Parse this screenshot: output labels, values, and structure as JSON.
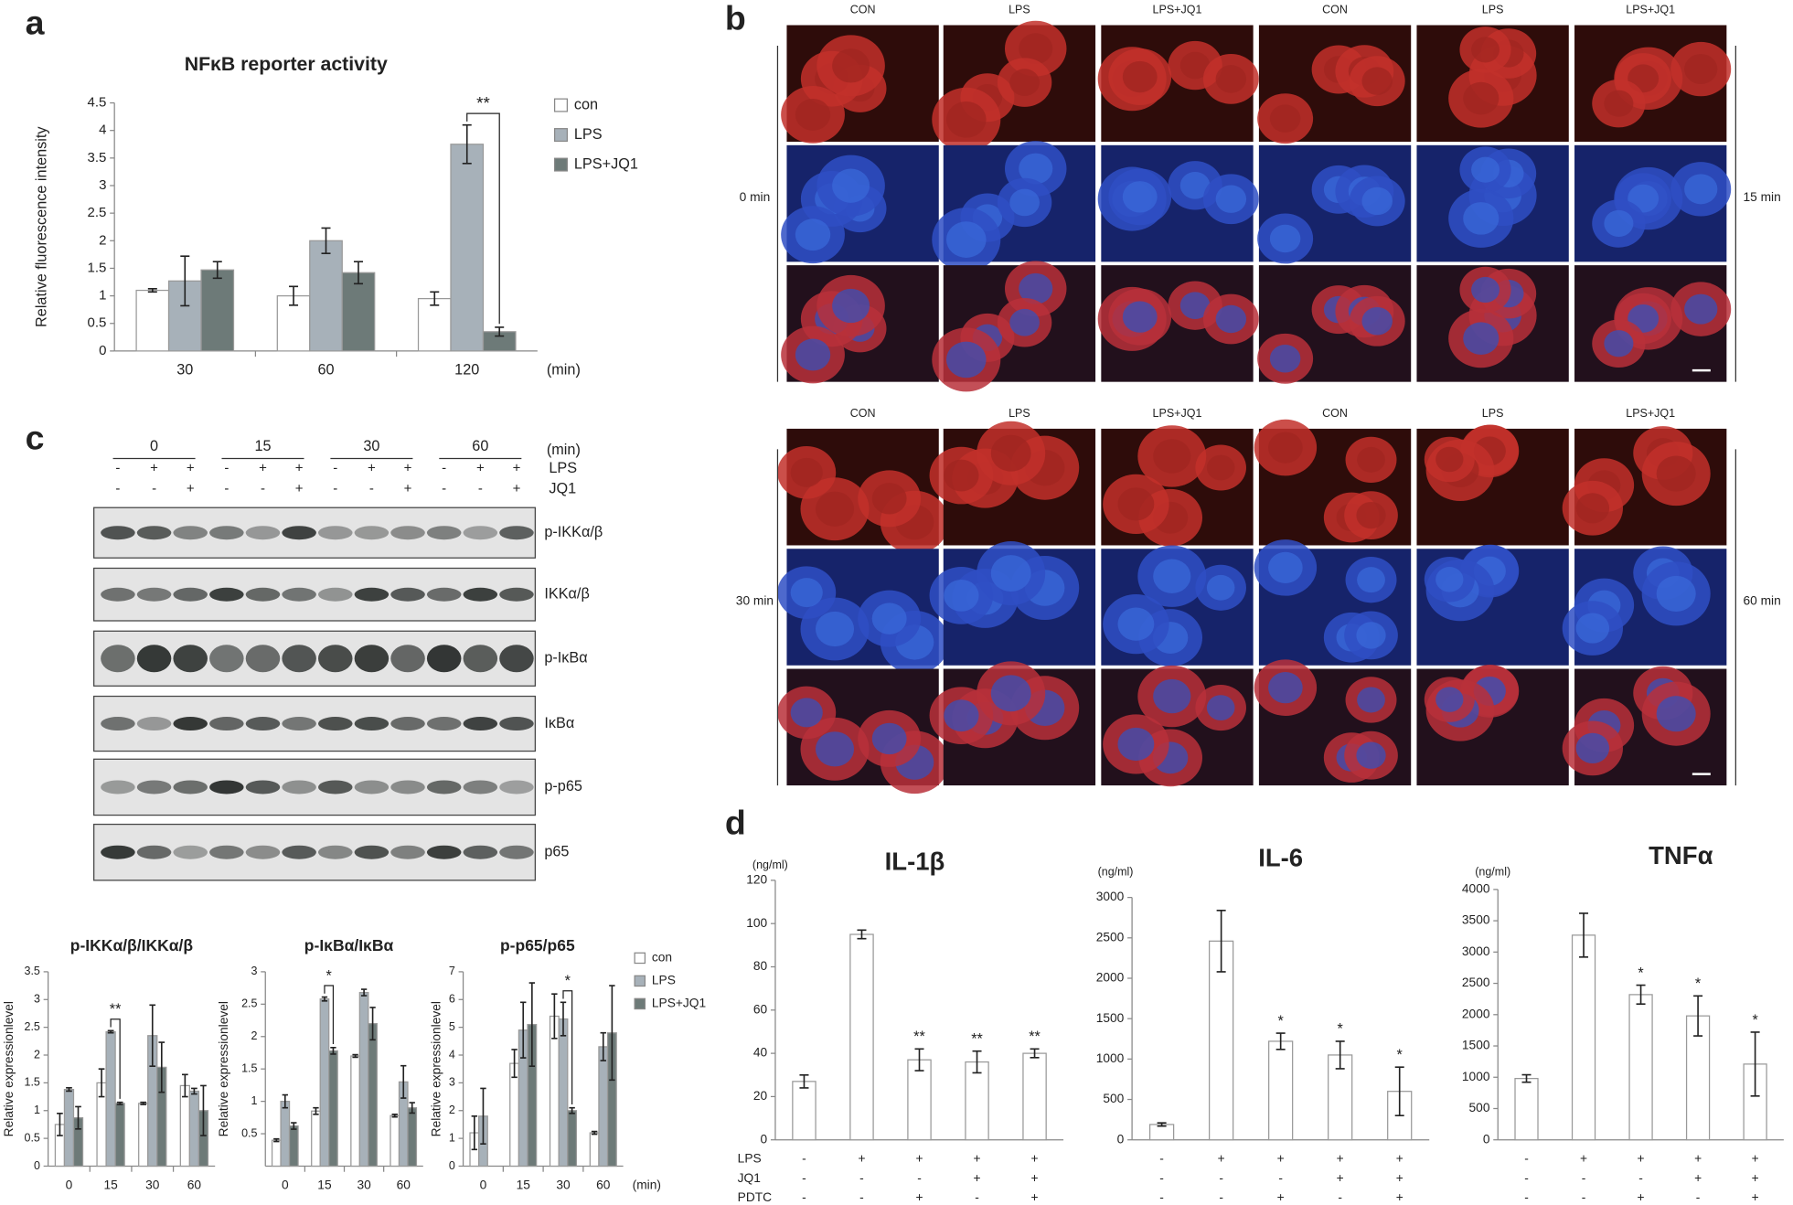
{
  "panel_letters": [
    "a",
    "b",
    "c",
    "d"
  ],
  "chart_data": [
    {
      "type": "bar",
      "title": "NFκB reporter activity",
      "ylabel": "Relative fluorescence intensity",
      "xlabel": "(min)",
      "categories": [
        "30",
        "60",
        "120"
      ],
      "series": [
        {
          "name": "con",
          "color": "#ffffff",
          "values": [
            1.1,
            1.0,
            0.95
          ],
          "errors": [
            0.03,
            0.17,
            0.12
          ]
        },
        {
          "name": "LPS",
          "color": "#a7b1b9",
          "values": [
            1.27,
            2.0,
            3.75
          ],
          "errors": [
            0.45,
            0.23,
            0.35
          ]
        },
        {
          "name": "LPS+JQ1",
          "color": "#6d7a78",
          "values": [
            1.47,
            1.42,
            0.35
          ],
          "errors": [
            0.15,
            0.2,
            0.08
          ]
        }
      ],
      "annotations": [
        null,
        null,
        "**"
      ],
      "ylim": [
        0,
        4.5
      ],
      "yticks": [
        0,
        0.5,
        1,
        1.5,
        2,
        2.5,
        3,
        3.5,
        4,
        4.5
      ],
      "legend": "right"
    },
    {
      "type": "bar",
      "title": "p-IKKα/β/IKKα/β",
      "ylabel": "Relative expressionlevel",
      "categories": [
        "0",
        "15",
        "30",
        "60"
      ],
      "series": [
        {
          "color": "#ffffff",
          "values": [
            0.75,
            1.5,
            1.13,
            1.45
          ],
          "errors": [
            0.2,
            0.25,
            0.02,
            0.2
          ]
        },
        {
          "color": "#a7b1b9",
          "values": [
            1.38,
            2.42,
            2.35,
            1.35
          ],
          "errors": [
            0.03,
            0.02,
            0.55,
            0.05
          ]
        },
        {
          "color": "#6d7a78",
          "values": [
            0.87,
            1.13,
            1.78,
            1.0
          ],
          "errors": [
            0.2,
            0.02,
            0.45,
            0.45
          ]
        }
      ],
      "annotations": [
        null,
        "**",
        null,
        null
      ],
      "ylim": [
        0,
        3.5
      ],
      "yticks": [
        0,
        0.5,
        1,
        1.5,
        2,
        2.5,
        3,
        3.5
      ]
    },
    {
      "type": "bar",
      "title": "p-IκBα/IκBα",
      "ylabel": "Relative expressionlevel",
      "categories": [
        "0",
        "15",
        "30",
        "60"
      ],
      "series": [
        {
          "color": "#ffffff",
          "values": [
            0.4,
            0.85,
            1.7,
            0.78
          ],
          "errors": [
            0.02,
            0.05,
            0.02,
            0.02
          ]
        },
        {
          "color": "#a7b1b9",
          "values": [
            1.0,
            2.58,
            2.68,
            1.3
          ],
          "errors": [
            0.1,
            0.03,
            0.05,
            0.25
          ]
        },
        {
          "color": "#6d7a78",
          "values": [
            0.62,
            1.78,
            2.2,
            0.9
          ],
          "errors": [
            0.05,
            0.05,
            0.25,
            0.08
          ]
        }
      ],
      "annotations": [
        null,
        "*",
        null,
        null
      ],
      "ylim": [
        0,
        3
      ],
      "yticks": [
        0.5,
        1,
        1.5,
        2,
        2.5,
        3
      ]
    },
    {
      "type": "bar",
      "title": "p-p65/p65",
      "ylabel": "Relative expressionlevel",
      "xlabel": "(min)",
      "categories": [
        "0",
        "15",
        "30",
        "60"
      ],
      "series": [
        {
          "name": "con",
          "color": "#ffffff",
          "values": [
            1.2,
            3.7,
            5.4,
            1.2
          ],
          "errors": [
            0.6,
            0.5,
            0.8,
            0.05
          ]
        },
        {
          "name": "LPS",
          "color": "#a7b1b9",
          "values": [
            1.8,
            4.9,
            5.3,
            4.3
          ],
          "errors": [
            1.0,
            1.0,
            0.6,
            0.5
          ]
        },
        {
          "name": "LPS+JQ1",
          "color": "#6d7a78",
          "values": [
            null,
            5.1,
            2.0,
            4.8
          ],
          "errors": [
            null,
            1.5,
            0.1,
            1.7
          ]
        }
      ],
      "annotations": [
        null,
        null,
        "*",
        null
      ],
      "ylim": [
        0,
        7
      ],
      "yticks": [
        0,
        1,
        2,
        3,
        4,
        5,
        6,
        7
      ],
      "legend": "right"
    },
    {
      "type": "bar",
      "title": "IL-1β",
      "unit": "(ng/ml)",
      "color": "#ffffff",
      "values": [
        27,
        95,
        37,
        36,
        40
      ],
      "errors": [
        3,
        2,
        5,
        5,
        2
      ],
      "annotations": [
        null,
        null,
        "**",
        "**",
        "**"
      ],
      "ylim": [
        0,
        120
      ],
      "yticks": [
        0,
        20,
        40,
        60,
        80,
        100,
        120
      ]
    },
    {
      "type": "bar",
      "title": "IL-6",
      "unit": "(ng/ml)",
      "color": "#ffffff",
      "values": [
        190,
        2460,
        1220,
        1050,
        600
      ],
      "errors": [
        20,
        380,
        100,
        170,
        300
      ],
      "annotations": [
        null,
        null,
        "*",
        "*",
        "*"
      ],
      "ylim": [
        0,
        3000
      ],
      "yticks": [
        0,
        500,
        1000,
        1500,
        2000,
        2500,
        3000
      ]
    },
    {
      "type": "bar",
      "title": "TNFα",
      "unit": "(ng/ml)",
      "color": "#ffffff",
      "values": [
        980,
        3270,
        2320,
        1980,
        1210
      ],
      "errors": [
        60,
        350,
        150,
        320,
        510
      ],
      "annotations": [
        null,
        null,
        "*",
        "*",
        "*"
      ],
      "ylim": [
        0,
        4000
      ],
      "yticks": [
        0,
        500,
        1000,
        1500,
        2000,
        2500,
        3000,
        3500,
        4000
      ]
    }
  ],
  "treatments": [
    {
      "label": "LPS",
      "signs": [
        "-",
        "+",
        "+",
        "+",
        "+"
      ]
    },
    {
      "label": "JQ1",
      "signs": [
        "-",
        "-",
        "-",
        "+",
        "+"
      ]
    },
    {
      "label": "PDTC",
      "signs": [
        "-",
        "-",
        "+",
        "-",
        "+"
      ]
    }
  ],
  "microscopy": {
    "columns": [
      "CON",
      "LPS",
      "LPS+JQ1",
      "CON",
      "LPS",
      "LPS+JQ1"
    ],
    "times": [
      "0 min",
      "15 min",
      "30 min",
      "60 min"
    ]
  },
  "blot": {
    "times": [
      "0",
      "15",
      "30",
      "60"
    ],
    "time_unit": "(min)",
    "rows": [
      {
        "label": "LPS",
        "signs": [
          "-",
          "+",
          "+",
          "-",
          "+",
          "+",
          "-",
          "+",
          "+",
          "-",
          "+",
          "+"
        ]
      },
      {
        "label": "JQ1",
        "signs": [
          "-",
          "-",
          "+",
          "-",
          "-",
          "+",
          "-",
          "-",
          "+",
          "-",
          "-",
          "+"
        ]
      }
    ],
    "bands": [
      "p-IKKα/β",
      "IKKα/β",
      "p-IκBα",
      "IκBα",
      "p-p65",
      "p65"
    ]
  }
}
